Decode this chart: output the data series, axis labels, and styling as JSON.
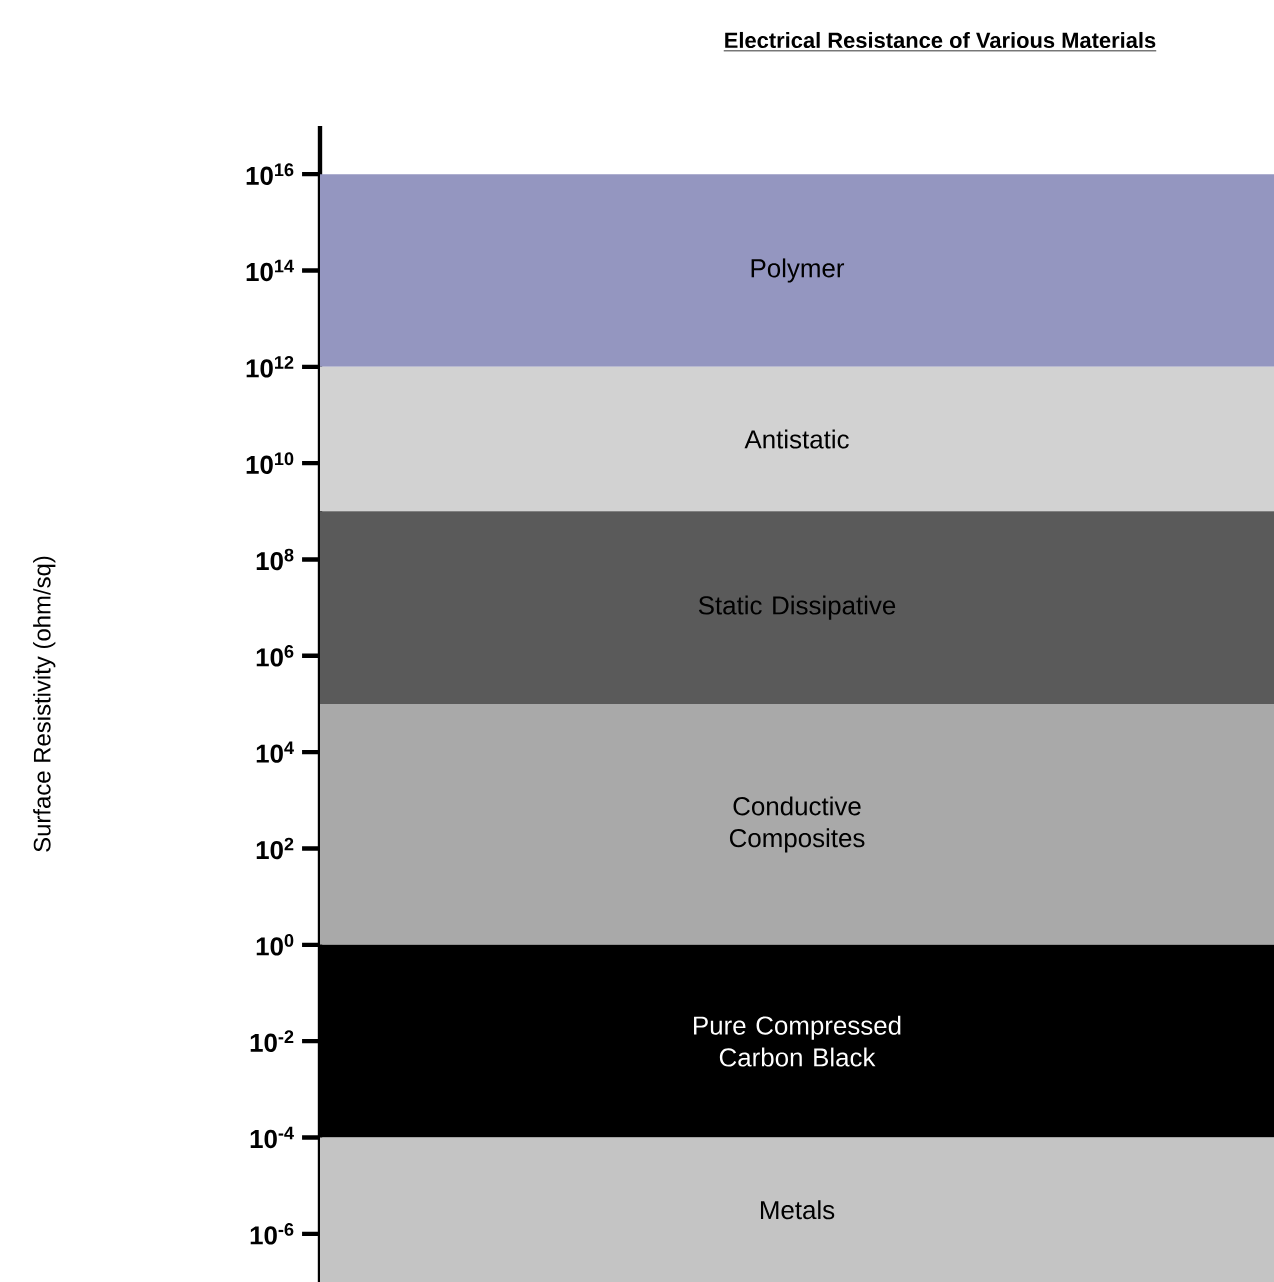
{
  "chart_data": {
    "type": "bar",
    "title": "Electrical Resistance of Various Materials",
    "ylabel": "Surface Resistivity (ohm/sq)",
    "log": "y",
    "ylim": [
      1e-07,
      1e+17
    ],
    "categories": [
      null
    ],
    "yticks": [
      {
        "value": 1e+16,
        "label": "10$^{16}$"
      },
      {
        "value": 100000000000000.0,
        "label": "10$^{14}$"
      },
      {
        "value": 1000000000000.0,
        "label": "10$^{12}$"
      },
      {
        "value": 10000000000.0,
        "label": "10$^{10}$"
      },
      {
        "value": 100000000.0,
        "label": "10$^{8}$"
      },
      {
        "value": 1000000.0,
        "label": "10$^{6}$"
      },
      {
        "value": 10000.0,
        "label": "10$^{4}$"
      },
      {
        "value": 100.0,
        "label": "10$^{2}$"
      },
      {
        "value": 1,
        "label": "10$^{0}$"
      },
      {
        "value": 0.01,
        "label": "10$^{-2}$"
      },
      {
        "value": 0.0001,
        "label": "10$^{-4}$"
      },
      {
        "value": 1e-06,
        "label": "10$^{-6}$"
      }
    ],
    "series": [
      {
        "name": "Polymer",
        "color": "#9496c0",
        "base": [
          1000000000000.0
        ],
        "values": [
          9999000000000000.0
        ]
      },
      {
        "name": "Antistatic",
        "color": "#d2d2d2",
        "base": [
          1000000000.0
        ],
        "values": [
          999000000000.0
        ]
      },
      {
        "name": "Static Dissipative",
        "color": "#5a5a5a",
        "base": [
          100000.0
        ],
        "values": [
          999900000
        ]
      },
      {
        "name": "Conductive Composites",
        "color": "#a9a9a9",
        "base": [
          1
        ],
        "values": [
          99999
        ]
      },
      {
        "name": "Pure Compressed Carbon Black",
        "color": "#000000",
        "base": [
          0.0001
        ],
        "values": [
          0.9999
        ]
      },
      {
        "name": "Metals",
        "color": "#c4c4c4",
        "base": [
          1e-07
        ],
        "values": [
          9.99e-05
        ]
      }
    ]
  }
}
